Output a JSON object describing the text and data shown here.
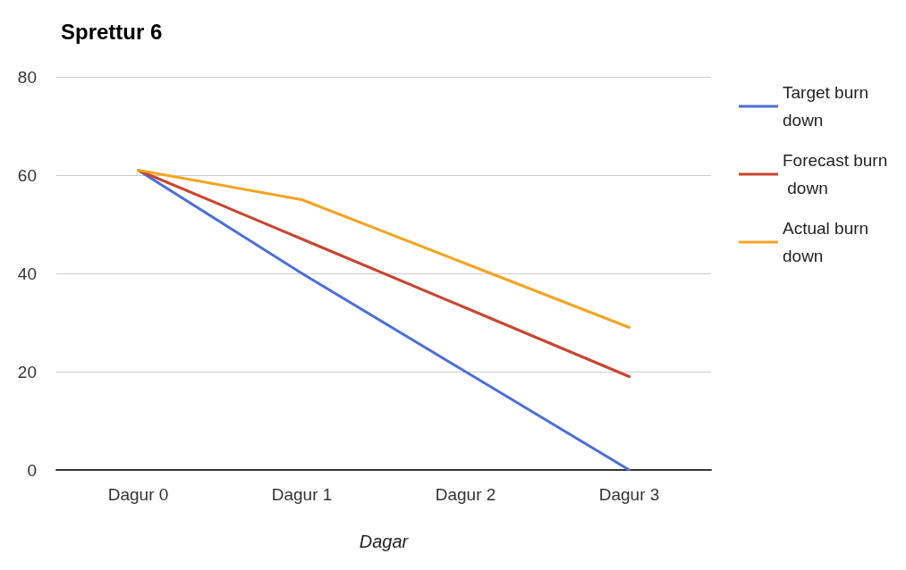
{
  "chart_data": {
    "type": "line",
    "title": "Sprettur 6",
    "xlabel": "Dagar",
    "categories": [
      "Dagur 0",
      "Dagur 1",
      "Dagur 2",
      "Dagur 3"
    ],
    "series": [
      {
        "name": "Target burn down",
        "color": "#4a6fd6",
        "values": [
          61,
          40,
          20,
          0
        ]
      },
      {
        "name": "Forecast burn down",
        "color": "#c9452f",
        "values": [
          61,
          47,
          33,
          19
        ]
      },
      {
        "name": "Actual burn down",
        "color": "#f4a422",
        "values": [
          61,
          55,
          42,
          29
        ]
      }
    ],
    "ylim": [
      0,
      80
    ],
    "yticks": [
      0,
      20,
      40,
      60,
      80
    ],
    "grid": "y",
    "legend": "right",
    "marker": "none",
    "line_style": "solid"
  }
}
